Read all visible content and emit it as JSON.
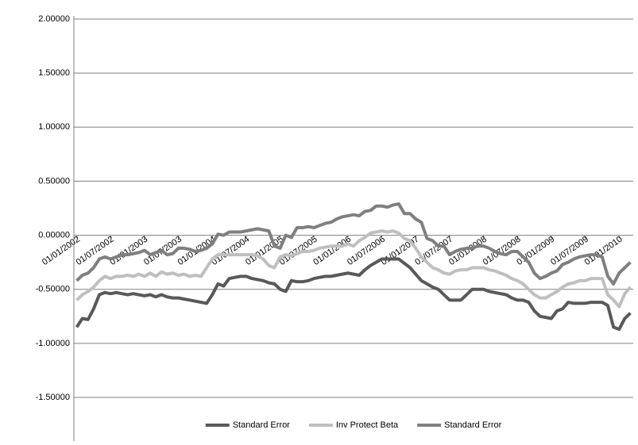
{
  "chart_data": {
    "type": "line",
    "categories": [
      "01/01/2002",
      null,
      null,
      null,
      null,
      null,
      "01/07/2002",
      null,
      null,
      null,
      null,
      null,
      "01/01/2003",
      null,
      null,
      null,
      null,
      null,
      "01/07/2003",
      null,
      null,
      null,
      null,
      null,
      "01/01/2004",
      null,
      null,
      null,
      null,
      null,
      "01/07/2004",
      null,
      null,
      null,
      null,
      null,
      "01/01/2005",
      null,
      null,
      null,
      null,
      null,
      "01/07/2005",
      null,
      null,
      null,
      null,
      null,
      "01/01/2006",
      null,
      null,
      null,
      null,
      null,
      "01/07/2006",
      null,
      null,
      null,
      null,
      null,
      "01/01/2007",
      null,
      null,
      null,
      null,
      null,
      "01/07/2007",
      null,
      null,
      null,
      null,
      null,
      "01/01/2008",
      null,
      null,
      null,
      null,
      null,
      "01/07/2008",
      null,
      null,
      null,
      null,
      null,
      "01/01/2009",
      null,
      null,
      null,
      null,
      null,
      "01/07/2009",
      null,
      null,
      null,
      null,
      null,
      "01/01/2010",
      null,
      null
    ],
    "series": [
      {
        "name": "Standard Error",
        "color": "#595959",
        "values": [
          -0.85,
          -0.77,
          -0.78,
          -0.68,
          -0.55,
          -0.53,
          -0.54,
          -0.53,
          -0.54,
          -0.55,
          -0.54,
          -0.55,
          -0.56,
          -0.55,
          -0.57,
          -0.55,
          -0.57,
          -0.58,
          -0.58,
          -0.59,
          -0.6,
          -0.61,
          -0.62,
          -0.63,
          -0.55,
          -0.45,
          -0.47,
          -0.4,
          -0.39,
          -0.38,
          -0.38,
          -0.4,
          -0.41,
          -0.42,
          -0.44,
          -0.45,
          -0.5,
          -0.52,
          -0.42,
          -0.43,
          -0.43,
          -0.42,
          -0.4,
          -0.39,
          -0.38,
          -0.38,
          -0.37,
          -0.36,
          -0.35,
          -0.36,
          -0.37,
          -0.32,
          -0.28,
          -0.25,
          -0.22,
          -0.22,
          -0.22,
          -0.22,
          -0.26,
          -0.3,
          -0.36,
          -0.42,
          -0.45,
          -0.48,
          -0.5,
          -0.55,
          -0.6,
          -0.6,
          -0.6,
          -0.55,
          -0.5,
          -0.5,
          -0.5,
          -0.52,
          -0.53,
          -0.54,
          -0.55,
          -0.58,
          -0.6,
          -0.6,
          -0.62,
          -0.7,
          -0.75,
          -0.76,
          -0.77,
          -0.7,
          -0.68,
          -0.62,
          -0.63,
          -0.63,
          -0.63,
          -0.62,
          -0.62,
          -0.62,
          -0.65,
          -0.85,
          -0.87,
          -0.77,
          -0.72
        ]
      },
      {
        "name": "Inv Protect  Beta",
        "color": "#bfbfbf",
        "values": [
          -0.6,
          -0.55,
          -0.52,
          -0.48,
          -0.42,
          -0.38,
          -0.4,
          -0.38,
          -0.38,
          -0.37,
          -0.38,
          -0.36,
          -0.38,
          -0.35,
          -0.38,
          -0.34,
          -0.36,
          -0.35,
          -0.37,
          -0.36,
          -0.38,
          -0.37,
          -0.38,
          -0.3,
          -0.22,
          -0.18,
          -0.18,
          -0.18,
          -0.18,
          -0.18,
          -0.18,
          -0.18,
          -0.19,
          -0.22,
          -0.28,
          -0.3,
          -0.2,
          -0.18,
          -0.19,
          -0.17,
          -0.15,
          -0.15,
          -0.14,
          -0.12,
          -0.11,
          -0.1,
          -0.1,
          -0.1,
          -0.08,
          -0.1,
          -0.05,
          -0.02,
          0.02,
          0.03,
          0.04,
          0.03,
          0.04,
          0.02,
          -0.03,
          -0.05,
          -0.12,
          -0.2,
          -0.25,
          -0.3,
          -0.32,
          -0.35,
          -0.36,
          -0.33,
          -0.32,
          -0.32,
          -0.3,
          -0.3,
          -0.3,
          -0.32,
          -0.33,
          -0.35,
          -0.37,
          -0.4,
          -0.42,
          -0.45,
          -0.5,
          -0.55,
          -0.58,
          -0.58,
          -0.55,
          -0.52,
          -0.48,
          -0.45,
          -0.44,
          -0.42,
          -0.42,
          -0.4,
          -0.4,
          -0.4,
          -0.55,
          -0.6,
          -0.66,
          -0.54,
          -0.48
        ]
      },
      {
        "name": "Standard Error",
        "color": "#7f7f7f",
        "values": [
          -0.42,
          -0.37,
          -0.35,
          -0.3,
          -0.22,
          -0.2,
          -0.22,
          -0.2,
          -0.18,
          -0.18,
          -0.17,
          -0.16,
          -0.14,
          -0.18,
          -0.16,
          -0.14,
          -0.18,
          -0.17,
          -0.12,
          -0.12,
          -0.13,
          -0.15,
          -0.14,
          -0.12,
          -0.08,
          0.01,
          0.0,
          0.03,
          0.03,
          0.03,
          0.04,
          0.05,
          0.06,
          0.05,
          0.04,
          -0.1,
          -0.12,
          0.0,
          -0.02,
          0.07,
          0.07,
          0.08,
          0.07,
          0.09,
          0.11,
          0.12,
          0.15,
          0.17,
          0.18,
          0.19,
          0.18,
          0.22,
          0.23,
          0.27,
          0.27,
          0.26,
          0.28,
          0.29,
          0.2,
          0.2,
          0.15,
          0.12,
          -0.03,
          -0.05,
          -0.1,
          -0.1,
          -0.18,
          -0.15,
          -0.13,
          -0.12,
          -0.12,
          -0.1,
          -0.1,
          -0.12,
          -0.15,
          -0.17,
          -0.18,
          -0.15,
          -0.15,
          -0.2,
          -0.25,
          -0.35,
          -0.4,
          -0.38,
          -0.35,
          -0.33,
          -0.27,
          -0.25,
          -0.22,
          -0.2,
          -0.19,
          -0.18,
          -0.18,
          -0.2,
          -0.38,
          -0.45,
          -0.35,
          -0.3,
          -0.25
        ]
      }
    ],
    "ylim": [
      -1.5,
      2
    ],
    "yticks": [
      {
        "value": -1.5,
        "label": "-1.50000"
      },
      {
        "value": -1,
        "label": "-1.00000"
      },
      {
        "value": -0.5,
        "label": "-0.50000"
      },
      {
        "value": 0,
        "label": "0.00000"
      },
      {
        "value": 0.5,
        "label": "0.50000"
      },
      {
        "value": 1,
        "label": "1.00000"
      },
      {
        "value": 1.5,
        "label": "1.50000"
      },
      {
        "value": 2,
        "label": "2.00000"
      }
    ],
    "grid": true,
    "legend": "bottom"
  }
}
